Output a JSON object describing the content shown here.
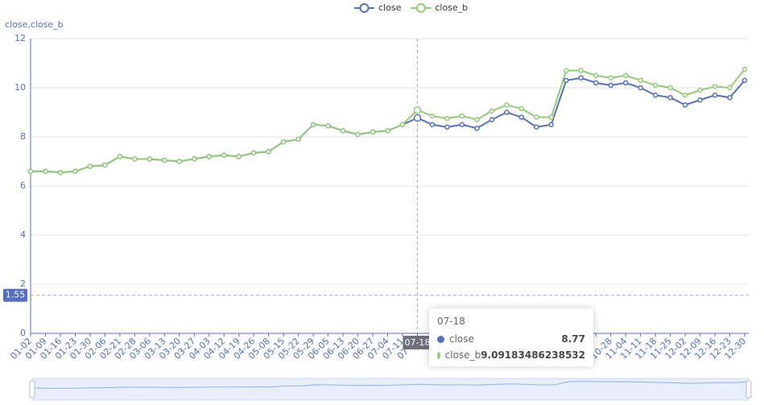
{
  "chart_data": {
    "type": "line",
    "y_axis_name": "close,close_b",
    "categories": [
      "01-02",
      "01-09",
      "01-16",
      "01-23",
      "01-30",
      "02-06",
      "02-21",
      "02-28",
      "03-06",
      "03-13",
      "03-20",
      "03-27",
      "04-03",
      "04-12",
      "04-19",
      "04-26",
      "05-08",
      "05-15",
      "05-22",
      "05-29",
      "06-05",
      "06-13",
      "06-20",
      "06-27",
      "07-04",
      "07-11",
      "07-18",
      null,
      null,
      null,
      null,
      null,
      null,
      null,
      null,
      null,
      null,
      null,
      null,
      "10-28",
      "11-04",
      "11-11",
      "11-18",
      "11-25",
      "12-02",
      "12-09",
      "12-16",
      "12-23",
      "12-30"
    ],
    "series": [
      {
        "name": "close",
        "color": "#5470c6",
        "values": [
          6.6,
          6.6,
          6.55,
          6.6,
          6.8,
          6.85,
          7.2,
          7.1,
          7.1,
          7.05,
          7.0,
          7.1,
          7.2,
          7.25,
          7.2,
          7.35,
          7.4,
          7.8,
          7.9,
          8.5,
          8.45,
          8.25,
          8.1,
          8.2,
          8.25,
          8.5,
          8.77,
          8.5,
          8.4,
          8.5,
          8.35,
          8.7,
          9.0,
          8.8,
          8.4,
          8.5,
          10.3,
          10.4,
          10.2,
          10.1,
          10.2,
          10.0,
          9.7,
          9.6,
          9.3,
          9.5,
          9.7,
          9.6,
          10.3
        ]
      },
      {
        "name": "close_b",
        "color": "#91cc75",
        "values": [
          6.6,
          6.6,
          6.55,
          6.6,
          6.8,
          6.85,
          7.2,
          7.1,
          7.1,
          7.05,
          7.0,
          7.1,
          7.2,
          7.25,
          7.2,
          7.35,
          7.4,
          7.8,
          7.9,
          8.5,
          8.45,
          8.25,
          8.1,
          8.2,
          8.25,
          8.5,
          9.09183486238532,
          8.85,
          8.75,
          8.85,
          8.7,
          9.05,
          9.3,
          9.15,
          8.8,
          8.8,
          10.7,
          10.7,
          10.5,
          10.4,
          10.5,
          10.3,
          10.1,
          10.0,
          9.7,
          9.9,
          10.05,
          10.0,
          10.75
        ]
      }
    ],
    "ylim": [
      0,
      12
    ],
    "yticks": [
      0,
      2,
      4,
      6,
      8,
      10,
      12
    ],
    "grid": true,
    "axis_pointer": {
      "x": "07-18",
      "y": 1.55
    },
    "tooltip": {
      "title": "07-18",
      "index": 26
    }
  }
}
